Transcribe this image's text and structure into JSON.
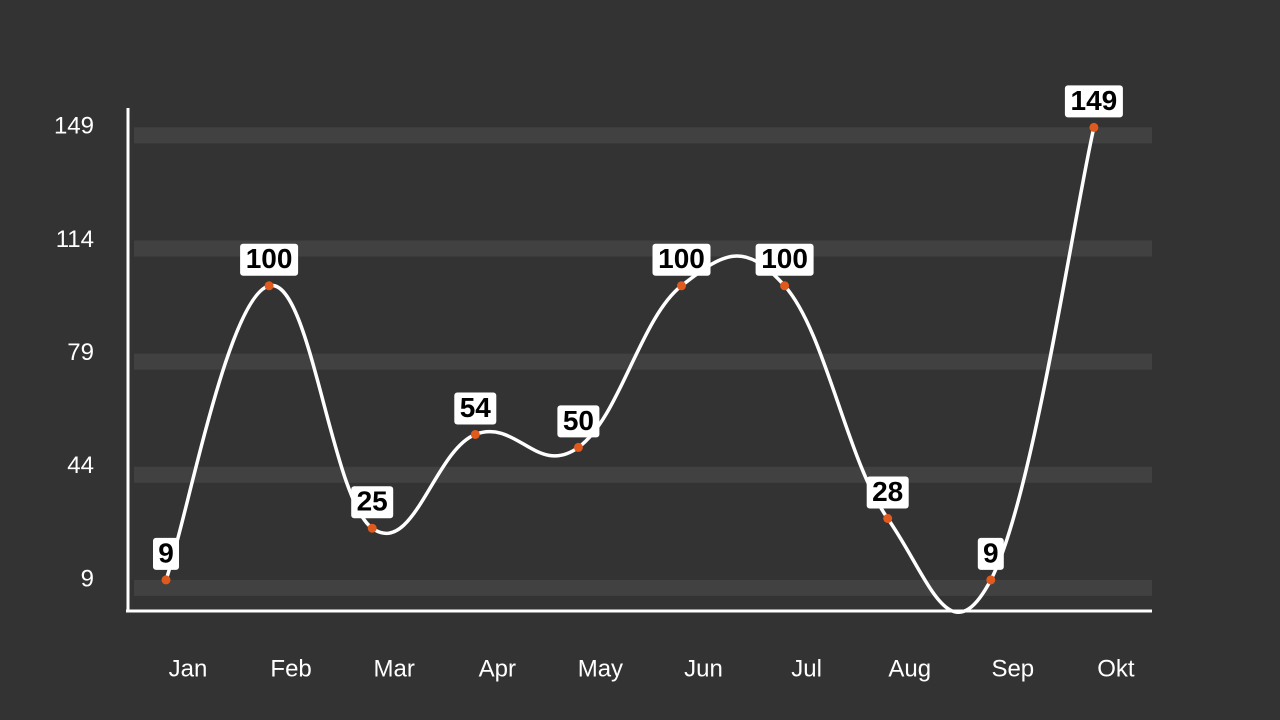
{
  "chart_data": {
    "type": "line",
    "categories": [
      "Jan",
      "Feb",
      "Mar",
      "Apr",
      "May",
      "Jun",
      "Jul",
      "Aug",
      "Sep",
      "Okt"
    ],
    "values": [
      9,
      100,
      25,
      54,
      50,
      100,
      100,
      28,
      9,
      149
    ],
    "color": "#ffffff",
    "marker_color": "#e05a1e",
    "ylim": [
      0,
      155
    ],
    "yticks": [
      9,
      44,
      79,
      114,
      149
    ],
    "grid": true
  }
}
